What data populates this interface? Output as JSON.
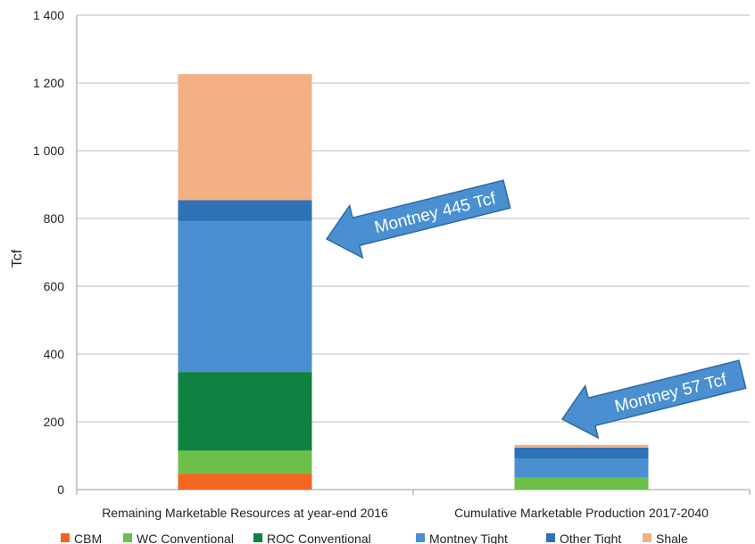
{
  "chart_data": {
    "type": "bar",
    "stacked": true,
    "ylabel": "Tcf",
    "ylim": [
      0,
      1400
    ],
    "yticks": [
      0,
      200,
      400,
      600,
      800,
      1000,
      1200,
      1400
    ],
    "ytick_labels": [
      "0",
      "200",
      "400",
      "600",
      "800",
      "1 000",
      "1 200",
      "1 400"
    ],
    "grid": true,
    "legend": "bottom",
    "categories": [
      "Remaining Marketable Resources at year-end 2016",
      "Cumulative Marketable Production 2017-2040"
    ],
    "series": [
      {
        "name": "CBM",
        "color": "#f26522",
        "values": [
          47,
          0
        ]
      },
      {
        "name": "WC Conventional",
        "color": "#6cc04a",
        "values": [
          68,
          35
        ]
      },
      {
        "name": "ROC Conventional",
        "color": "#0f8140",
        "values": [
          232,
          0
        ]
      },
      {
        "name": "Montney Tight",
        "color": "#4a90d0",
        "values": [
          445,
          57
        ]
      },
      {
        "name": "Other Tight",
        "color": "#2f72b7",
        "values": [
          62,
          32
        ]
      },
      {
        "name": "Shale",
        "color": "#f2b084",
        "values": [
          372,
          8
        ]
      }
    ],
    "annotations": [
      {
        "text": "Montney 445 Tcf",
        "category": 0
      },
      {
        "text": "Montney 57 Tcf",
        "category": 1
      }
    ]
  }
}
